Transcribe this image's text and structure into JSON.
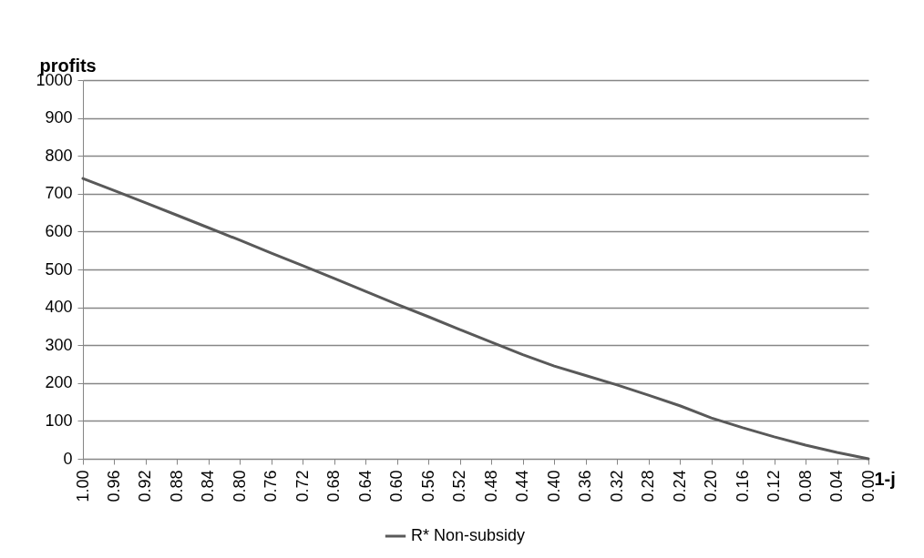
{
  "chart_data": {
    "type": "line",
    "ylabel": "profits",
    "xlabel": "1-j",
    "x": [
      1.0,
      0.96,
      0.92,
      0.88,
      0.84,
      0.8,
      0.76,
      0.72,
      0.68,
      0.64,
      0.6,
      0.56,
      0.52,
      0.48,
      0.44,
      0.4,
      0.36,
      0.32,
      0.28,
      0.24,
      0.2,
      0.16,
      0.12,
      0.08,
      0.04,
      0.0
    ],
    "series": [
      {
        "name": "R* Non-subsidy",
        "color": "#595959",
        "values": [
          740,
          708,
          676,
          643,
          610,
          577,
          543,
          510,
          476,
          442,
          408,
          375,
          341,
          308,
          275,
          245,
          220,
          195,
          168,
          140,
          108,
          82,
          58,
          36,
          17,
          0
        ]
      }
    ],
    "xlim": [
      1,
      0
    ],
    "xticks": [
      {
        "value": 1,
        "label": "1.00"
      },
      {
        "value": 0.96,
        "label": "0.96"
      },
      {
        "value": 0.92,
        "label": "0.92"
      },
      {
        "value": 0.88,
        "label": "0.88"
      },
      {
        "value": 0.84,
        "label": "0.84"
      },
      {
        "value": 0.8,
        "label": "0.80"
      },
      {
        "value": 0.76,
        "label": "0.76"
      },
      {
        "value": 0.72,
        "label": "0.72"
      },
      {
        "value": 0.68,
        "label": "0.68"
      },
      {
        "value": 0.64,
        "label": "0.64"
      },
      {
        "value": 0.6,
        "label": "0.60"
      },
      {
        "value": 0.56,
        "label": "0.56"
      },
      {
        "value": 0.52,
        "label": "0.52"
      },
      {
        "value": 0.48,
        "label": "0.48"
      },
      {
        "value": 0.44,
        "label": "0.44"
      },
      {
        "value": 0.4,
        "label": "0.40"
      },
      {
        "value": 0.36,
        "label": "0.36"
      },
      {
        "value": 0.32,
        "label": "0.32"
      },
      {
        "value": 0.28,
        "label": "0.28"
      },
      {
        "value": 0.24,
        "label": "0.24"
      },
      {
        "value": 0.2,
        "label": "0.20"
      },
      {
        "value": 0.16,
        "label": "0.16"
      },
      {
        "value": 0.12,
        "label": "0.12"
      },
      {
        "value": 0.08,
        "label": "0.08"
      },
      {
        "value": 0.04,
        "label": "0.04"
      },
      {
        "value": 0,
        "label": "0.00"
      }
    ],
    "ylim": [
      0,
      1000
    ],
    "yticks": [
      0,
      100,
      200,
      300,
      400,
      500,
      600,
      700,
      800,
      900,
      1000
    ],
    "grid": "y",
    "legend": "bottom",
    "line_style": "solid",
    "marker": "none"
  }
}
